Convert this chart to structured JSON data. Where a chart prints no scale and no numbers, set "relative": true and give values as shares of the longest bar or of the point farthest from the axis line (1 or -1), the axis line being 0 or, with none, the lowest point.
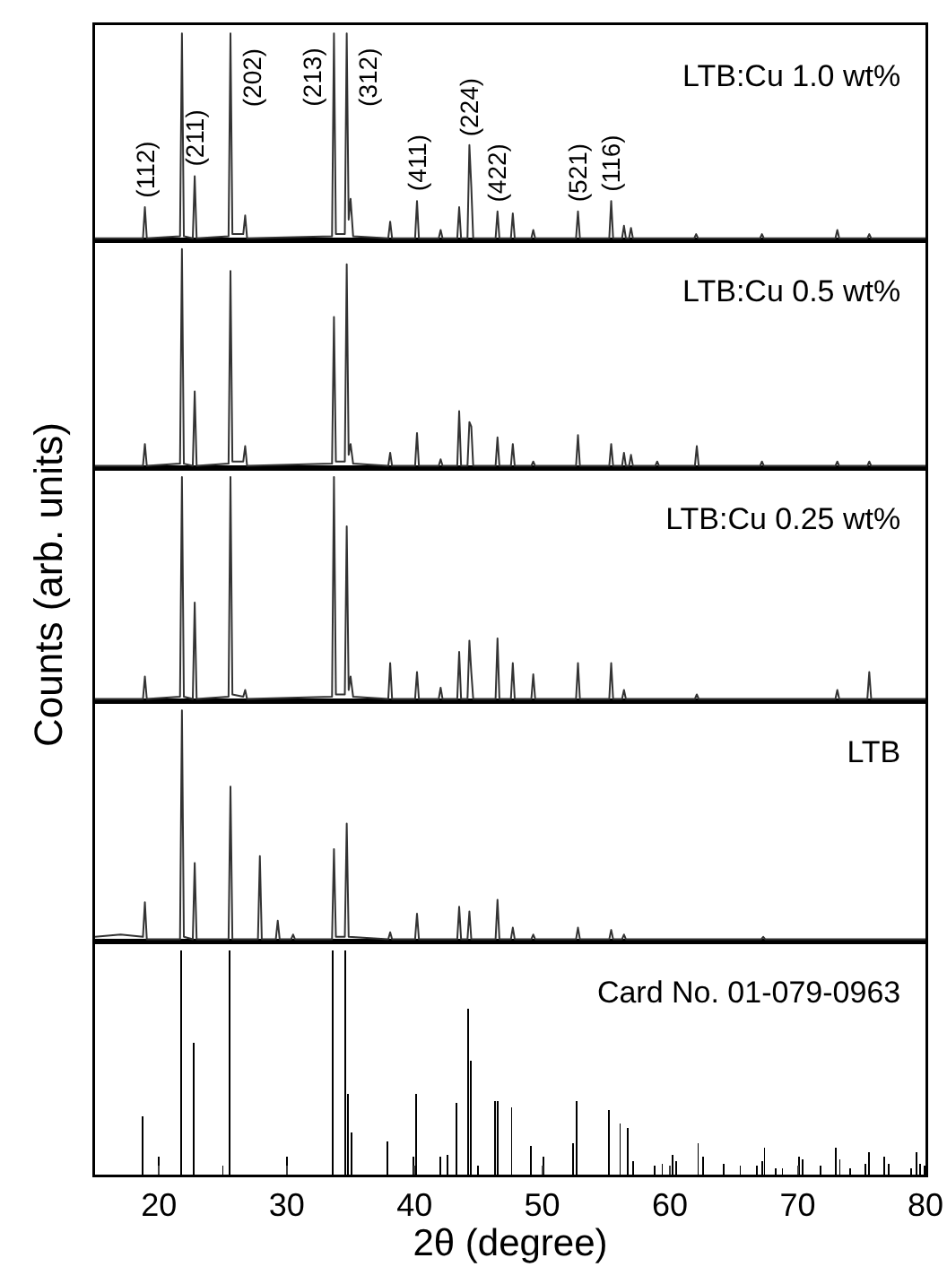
{
  "chart_data": [
    {
      "type": "line",
      "title": "LTB:Cu 1.0 wt%",
      "relative": true,
      "xlim": [
        15,
        80
      ],
      "tick_labels": false,
      "series": [
        {
          "color": "#333333",
          "x": [
            15,
            18.75,
            18.9,
            19.05,
            21.65,
            21.8,
            21.95,
            22.65,
            22.8,
            22.95,
            25.45,
            25.6,
            25.75,
            26.6,
            26.75,
            26.9,
            33.55,
            33.7,
            33.85,
            34.55,
            34.7,
            34.85,
            35.0,
            35.2,
            37.95,
            38.1,
            38.25,
            40.05,
            40.2,
            40.35,
            41.9,
            42.05,
            42.2,
            43.35,
            43.5,
            43.65,
            44.15,
            44.3,
            44.45,
            44.6,
            46.35,
            46.5,
            46.65,
            47.55,
            47.7,
            47.85,
            49.15,
            49.3,
            49.45,
            52.65,
            52.8,
            52.95,
            55.25,
            55.4,
            55.55,
            56.25,
            56.4,
            56.55,
            56.8,
            56.95,
            57.1,
            61.9,
            62.05,
            62.2,
            67.05,
            67.2,
            67.35,
            72.95,
            73.1,
            73.25,
            75.45,
            75.6,
            75.75,
            80
          ],
          "values": [
            0.01,
            0.01,
            0.16,
            0.01,
            0.02,
            1,
            0.02,
            0.01,
            0.31,
            0.01,
            0.02,
            1,
            0.03,
            0.03,
            0.12,
            0.01,
            0.02,
            1,
            0.03,
            0.03,
            1,
            0.1,
            0.2,
            0.02,
            0.01,
            0.09,
            0.01,
            0.01,
            0.19,
            0.01,
            0.01,
            0.05,
            0.01,
            0.01,
            0.16,
            0.01,
            0.01,
            0.46,
            0.26,
            0.01,
            0.01,
            0.14,
            0.01,
            0.01,
            0.13,
            0.01,
            0.01,
            0.05,
            0.01,
            0.01,
            0.14,
            0.01,
            0.01,
            0.19,
            0.01,
            0.01,
            0.07,
            0.01,
            0.01,
            0.06,
            0.01,
            0.01,
            0.03,
            0.01,
            0.01,
            0.03,
            0.01,
            0.01,
            0.05,
            0.01,
            0.01,
            0.03,
            0.01,
            0.01
          ]
        }
      ],
      "annotations": [
        {
          "text": "(112)",
          "x": 18.9,
          "y": 0.16
        },
        {
          "text": "(211)",
          "x": 22.8,
          "y": 0.31
        },
        {
          "text": "(202)",
          "x": 25.6,
          "y": 1
        },
        {
          "text": "(213)",
          "x": 33.7,
          "y": 1
        },
        {
          "text": "(312)",
          "x": 34.7,
          "y": 1
        },
        {
          "text": "(411)",
          "x": 40.2,
          "y": 0.19
        },
        {
          "text": "(224)",
          "x": 44.3,
          "y": 0.46
        },
        {
          "text": "(422)",
          "x": 46.5,
          "y": 0.14
        },
        {
          "text": "(521)",
          "x": 52.8,
          "y": 0.14
        },
        {
          "text": "(116)",
          "x": 55.4,
          "y": 0.19
        }
      ]
    },
    {
      "type": "line",
      "title": "LTB:Cu 0.5 wt%",
      "relative": true,
      "xlim": [
        15,
        80
      ],
      "tick_labels": false,
      "series": [
        {
          "color": "#333333",
          "x": [
            15,
            18.75,
            18.9,
            19.05,
            21.65,
            21.8,
            21.95,
            22.65,
            22.8,
            22.95,
            25.45,
            25.6,
            25.75,
            26.6,
            26.75,
            26.9,
            33.55,
            33.7,
            33.85,
            34.55,
            34.7,
            34.85,
            35.0,
            35.2,
            37.95,
            38.1,
            38.25,
            40.05,
            40.2,
            40.35,
            41.9,
            42.05,
            42.2,
            43.35,
            43.5,
            43.65,
            44.15,
            44.3,
            44.45,
            44.6,
            46.35,
            46.5,
            46.65,
            47.55,
            47.7,
            47.85,
            49.15,
            49.3,
            49.45,
            52.65,
            52.8,
            52.95,
            55.25,
            55.4,
            55.55,
            56.25,
            56.4,
            56.55,
            56.8,
            56.95,
            57.1,
            58.85,
            59.0,
            59.15,
            61.95,
            62.1,
            62.25,
            67.05,
            67.2,
            67.35,
            72.95,
            73.1,
            73.25,
            75.45,
            75.6,
            75.75,
            80
          ],
          "values": [
            0.01,
            0.01,
            0.11,
            0.01,
            0.02,
            1,
            0.02,
            0.01,
            0.35,
            0.01,
            0.02,
            0.9,
            0.03,
            0.03,
            0.1,
            0.01,
            0.02,
            0.69,
            0.03,
            0.03,
            0.93,
            0.06,
            0.11,
            0.02,
            0.01,
            0.07,
            0.01,
            0.01,
            0.16,
            0.01,
            0.01,
            0.04,
            0.01,
            0.01,
            0.26,
            0.01,
            0.01,
            0.21,
            0.19,
            0.01,
            0.01,
            0.14,
            0.01,
            0.01,
            0.11,
            0.01,
            0.01,
            0.03,
            0.01,
            0.01,
            0.15,
            0.01,
            0.01,
            0.11,
            0.01,
            0.01,
            0.07,
            0.01,
            0.01,
            0.06,
            0.01,
            0.01,
            0.03,
            0.01,
            0.01,
            0.1,
            0.01,
            0.01,
            0.03,
            0.01,
            0.01,
            0.03,
            0.01,
            0.01,
            0.03,
            0.01,
            0.01
          ]
        }
      ]
    },
    {
      "type": "line",
      "title": "LTB:Cu 0.25 wt%",
      "ylabel": "Counts (arb. units)",
      "relative": true,
      "xlim": [
        15,
        80
      ],
      "tick_labels": false,
      "series": [
        {
          "color": "#333333",
          "x": [
            15,
            18.75,
            18.9,
            19.05,
            21.65,
            21.8,
            21.95,
            22.65,
            22.8,
            22.95,
            25.45,
            25.6,
            25.75,
            26.6,
            26.75,
            26.9,
            33.55,
            33.7,
            33.85,
            34.55,
            34.7,
            34.85,
            35.0,
            35.2,
            37.95,
            38.1,
            38.25,
            40.05,
            40.2,
            40.35,
            41.9,
            42.05,
            42.2,
            43.35,
            43.5,
            43.65,
            44.15,
            44.3,
            44.45,
            44.6,
            46.35,
            46.5,
            46.65,
            47.55,
            47.7,
            47.85,
            49.15,
            49.3,
            49.45,
            52.65,
            52.8,
            52.95,
            55.25,
            55.4,
            55.55,
            56.25,
            56.4,
            56.55,
            61.95,
            62.1,
            62.25,
            72.95,
            73.1,
            73.25,
            75.45,
            75.6,
            75.75,
            80
          ],
          "values": [
            0.01,
            0.01,
            0.11,
            0.01,
            0.02,
            1,
            0.02,
            0.01,
            0.44,
            0.01,
            0.02,
            1,
            0.03,
            0.02,
            0.05,
            0.01,
            0.02,
            1,
            0.03,
            0.03,
            0.78,
            0.05,
            0.11,
            0.02,
            0.01,
            0.17,
            0.01,
            0.01,
            0.13,
            0.01,
            0.01,
            0.06,
            0.01,
            0.01,
            0.22,
            0.01,
            0.01,
            0.27,
            0.13,
            0.01,
            0.01,
            0.28,
            0.01,
            0.01,
            0.17,
            0.01,
            0.01,
            0.12,
            0.01,
            0.01,
            0.17,
            0.01,
            0.01,
            0.17,
            0.01,
            0.01,
            0.05,
            0.01,
            0.01,
            0.03,
            0.01,
            0.01,
            0.05,
            0.01,
            0.01,
            0.13,
            0.01,
            0.01
          ]
        }
      ]
    },
    {
      "type": "line",
      "title": "LTB",
      "relative": true,
      "xlim": [
        15,
        80
      ],
      "tick_labels": false,
      "series": [
        {
          "color": "#333333",
          "x": [
            15,
            17,
            18.75,
            18.9,
            19.05,
            21.65,
            21.8,
            21.95,
            22.65,
            22.8,
            22.95,
            25.45,
            25.6,
            25.75,
            27.75,
            27.9,
            28.05,
            29.15,
            29.3,
            29.45,
            30.35,
            30.5,
            30.65,
            33.55,
            33.7,
            33.85,
            34.55,
            34.7,
            34.85,
            37.95,
            38.1,
            38.25,
            40.05,
            40.2,
            40.35,
            43.35,
            43.5,
            43.65,
            44.15,
            44.3,
            44.45,
            46.35,
            46.5,
            46.65,
            47.55,
            47.7,
            47.85,
            49.15,
            49.3,
            49.45,
            52.65,
            52.8,
            52.95,
            55.25,
            55.4,
            55.55,
            56.25,
            56.4,
            56.55,
            67.15,
            67.3,
            67.45,
            80
          ],
          "values": [
            0.02,
            0.03,
            0.02,
            0.17,
            0.01,
            0.01,
            1,
            0.02,
            0.01,
            0.34,
            0.01,
            0.01,
            0.67,
            0.01,
            0.01,
            0.37,
            0.01,
            0.01,
            0.09,
            0.01,
            0.01,
            0.03,
            0.01,
            0.01,
            0.4,
            0.02,
            0.02,
            0.51,
            0.02,
            0.01,
            0.04,
            0.01,
            0.01,
            0.12,
            0.01,
            0.01,
            0.15,
            0.01,
            0.01,
            0.13,
            0.01,
            0.01,
            0.18,
            0.01,
            0.01,
            0.06,
            0.01,
            0.01,
            0.03,
            0.01,
            0.01,
            0.06,
            0.01,
            0.01,
            0.05,
            0.01,
            0.01,
            0.03,
            0.01,
            0.01,
            0.02,
            0.01,
            0.01
          ]
        }
      ]
    },
    {
      "type": "bar",
      "title": "Card No. 01-079-0963",
      "xlabel": "2θ (degree)",
      "relative": true,
      "xlim": [
        15,
        80
      ],
      "xticks": [
        20,
        30,
        40,
        50,
        60,
        70,
        80
      ],
      "tick_labels": "x",
      "series": [
        {
          "color": "#000000",
          "x": [
            18.7,
            20.0,
            21.75,
            22.7,
            25.0,
            25.5,
            30.0,
            33.6,
            34.6,
            34.8,
            35.1,
            37.9,
            39.9,
            40.1,
            42.0,
            42.6,
            43.3,
            44.2,
            44.4,
            45.0,
            46.3,
            46.5,
            47.6,
            49.1,
            50.1,
            52.4,
            52.7,
            55.2,
            56.1,
            56.7,
            57.1,
            58.8,
            59.4,
            60.2,
            60.5,
            62.2,
            62.6,
            64.2,
            65.5,
            66.8,
            67.2,
            67.4,
            68.3,
            68.8,
            70.1,
            70.4,
            71.8,
            73.0,
            73.3,
            74.1,
            75.3,
            75.6,
            76.8,
            77.1,
            78.9,
            79.3,
            79.6,
            79.9
          ],
          "values": [
            0.26,
            0.08,
            1,
            0.59,
            0.04,
            1,
            0.08,
            1,
            1,
            0.36,
            0.19,
            0.15,
            0.08,
            0.36,
            0.08,
            0.09,
            0.32,
            0.74,
            0.51,
            0.04,
            0.33,
            0.33,
            0.3,
            0.13,
            0.08,
            0.14,
            0.33,
            0.29,
            0.23,
            0.21,
            0.06,
            0.04,
            0.05,
            0.09,
            0.06,
            0.14,
            0.08,
            0.05,
            0.04,
            0.04,
            0.06,
            0.12,
            0.03,
            0.03,
            0.08,
            0.07,
            0.04,
            0.12,
            0.07,
            0.03,
            0.05,
            0.1,
            0.08,
            0.05,
            0.03,
            0.1,
            0.05,
            0.04
          ]
        }
      ]
    }
  ]
}
